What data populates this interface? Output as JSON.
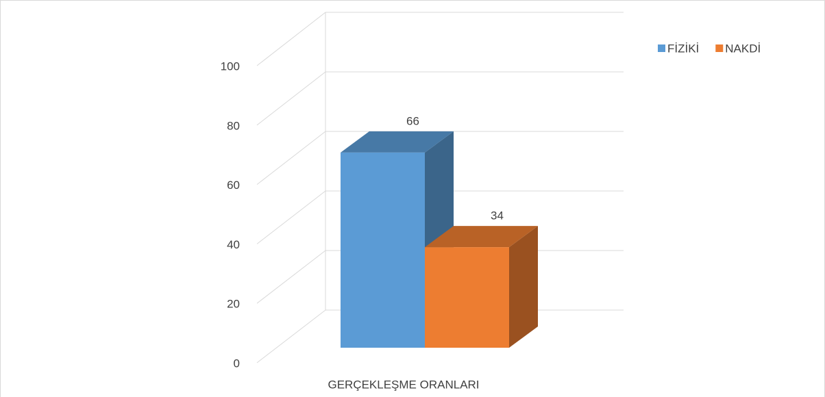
{
  "chart_data": {
    "type": "bar3d",
    "categories": [
      "GERÇEKLEŞME ORANLARI"
    ],
    "series": [
      {
        "name": "FİZİKİ",
        "color": "#5b9bd5",
        "values": [
          66
        ]
      },
      {
        "name": "NAKDİ",
        "color": "#ed7d31",
        "values": [
          34
        ]
      }
    ],
    "ylim": [
      0,
      100
    ],
    "yticks": [
      0,
      20,
      40,
      60,
      80,
      100
    ],
    "grid": true,
    "legend": "top-right"
  }
}
